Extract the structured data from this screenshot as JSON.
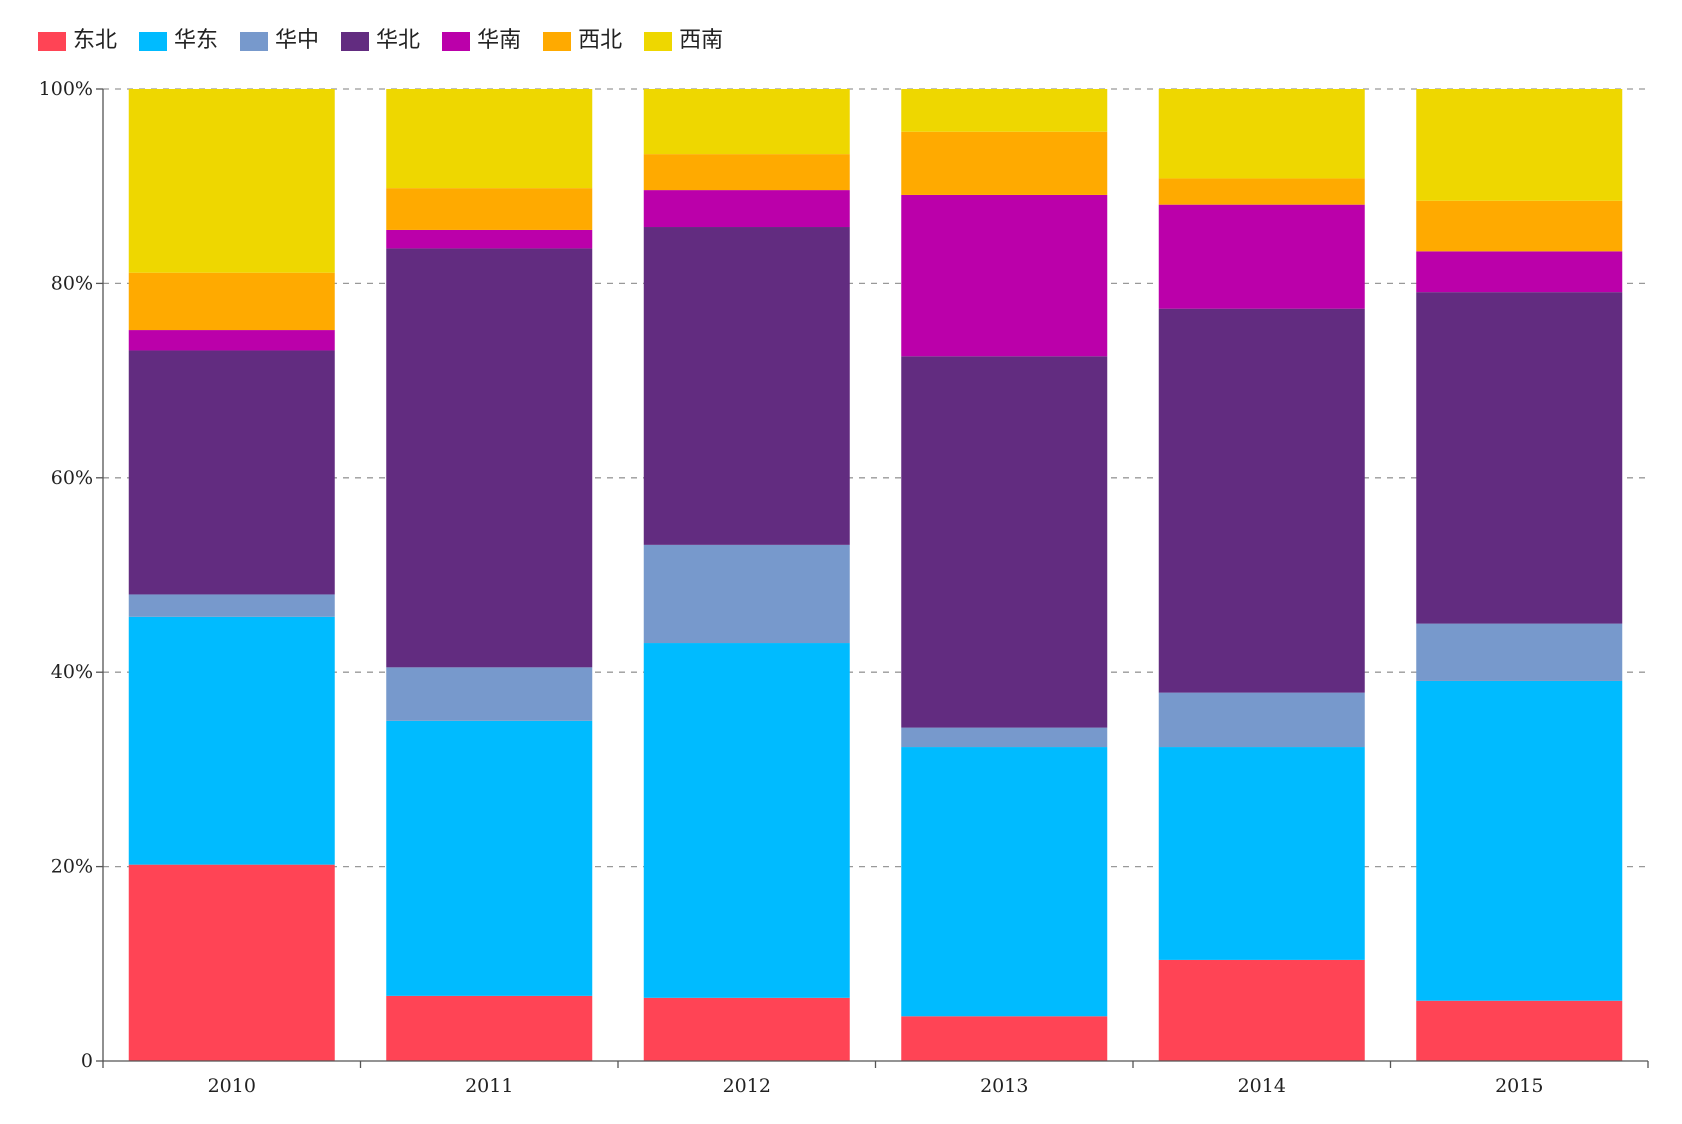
{
  "chart_data": {
    "type": "bar",
    "stacked": true,
    "normalized": true,
    "categories": [
      "2010",
      "2011",
      "2012",
      "2013",
      "2014",
      "2015"
    ],
    "ylim": [
      0,
      100
    ],
    "yticks": [
      0,
      20,
      40,
      60,
      80,
      100
    ],
    "ytick_labels": [
      "0",
      "20%",
      "40%",
      "60%",
      "80%",
      "100%"
    ],
    "grid": true,
    "legend": "top-left",
    "series": [
      {
        "name": "东北",
        "color": "#ff4455",
        "values": [
          20.2,
          6.7,
          6.5,
          4.6,
          10.4,
          6.2
        ]
      },
      {
        "name": "华东",
        "color": "#00bbff",
        "values": [
          25.5,
          28.3,
          36.5,
          27.7,
          21.9,
          32.9
        ]
      },
      {
        "name": "华中",
        "color": "#7799cc",
        "values": [
          2.3,
          5.5,
          10.1,
          2.0,
          5.6,
          5.9
        ]
      },
      {
        "name": "华北",
        "color": "#622c80",
        "values": [
          25.1,
          43.1,
          32.7,
          38.2,
          39.5,
          34.1
        ]
      },
      {
        "name": "华南",
        "color": "#bb00aa",
        "values": [
          2.1,
          1.9,
          3.8,
          16.6,
          10.7,
          4.2
        ]
      },
      {
        "name": "西北",
        "color": "#ffaa00",
        "values": [
          5.9,
          4.3,
          3.7,
          6.5,
          2.7,
          5.2
        ]
      },
      {
        "name": "西南",
        "color": "#eed700",
        "values": [
          18.9,
          10.2,
          6.7,
          4.4,
          9.2,
          11.5
        ]
      }
    ]
  }
}
